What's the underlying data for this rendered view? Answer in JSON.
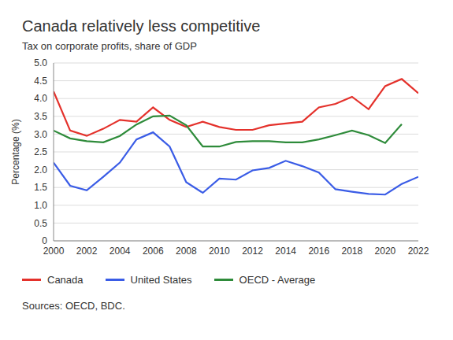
{
  "chart_data": {
    "type": "line",
    "title": "Canada relatively less competitive",
    "subtitle": "Tax on corporate profits, share of GDP",
    "y_label": "Percentage (%)",
    "source": "Sources: OECD, BDC.",
    "x": [
      2000,
      2001,
      2002,
      2003,
      2004,
      2005,
      2006,
      2007,
      2008,
      2009,
      2010,
      2011,
      2012,
      2013,
      2014,
      2015,
      2016,
      2017,
      2018,
      2019,
      2020,
      2021,
      2022
    ],
    "xlim": [
      2000,
      2022
    ],
    "xticks": [
      2000,
      2002,
      2004,
      2006,
      2008,
      2010,
      2012,
      2014,
      2016,
      2018,
      2020,
      2022
    ],
    "ylim": [
      0,
      5
    ],
    "yticks": [
      0,
      0.5,
      {
        "value": 1,
        "label": "1.0"
      },
      1.5,
      {
        "value": 2,
        "label": "2.0"
      },
      2.5,
      {
        "value": 3,
        "label": "3.0"
      },
      3.5,
      {
        "value": 4,
        "label": "4.0"
      },
      4.5,
      {
        "value": 5,
        "label": "5.0"
      }
    ],
    "grid": true,
    "legend": "bottom",
    "series": [
      {
        "name": "Canada",
        "color": "#e4312b",
        "values": [
          4.2,
          3.1,
          2.95,
          3.15,
          3.4,
          3.35,
          3.75,
          3.4,
          3.2,
          3.35,
          3.2,
          3.12,
          3.12,
          3.25,
          3.3,
          3.35,
          3.75,
          3.85,
          4.05,
          3.7,
          4.35,
          4.55,
          4.15
        ]
      },
      {
        "name": "United States",
        "color": "#3a5ce6",
        "values": [
          2.2,
          1.55,
          1.42,
          1.8,
          2.2,
          2.85,
          3.05,
          2.65,
          1.65,
          1.35,
          1.75,
          1.72,
          1.98,
          2.05,
          2.25,
          2.1,
          1.92,
          1.45,
          1.38,
          1.32,
          1.3,
          1.6,
          1.8
        ]
      },
      {
        "name": "OECD - Average",
        "color": "#2e8b3a",
        "values": [
          3.1,
          2.88,
          2.8,
          2.77,
          2.95,
          3.27,
          3.5,
          3.52,
          3.25,
          2.65,
          2.65,
          2.78,
          2.8,
          2.8,
          2.77,
          2.77,
          2.85,
          2.97,
          3.1,
          2.97,
          2.75,
          3.28,
          null
        ]
      }
    ]
  }
}
